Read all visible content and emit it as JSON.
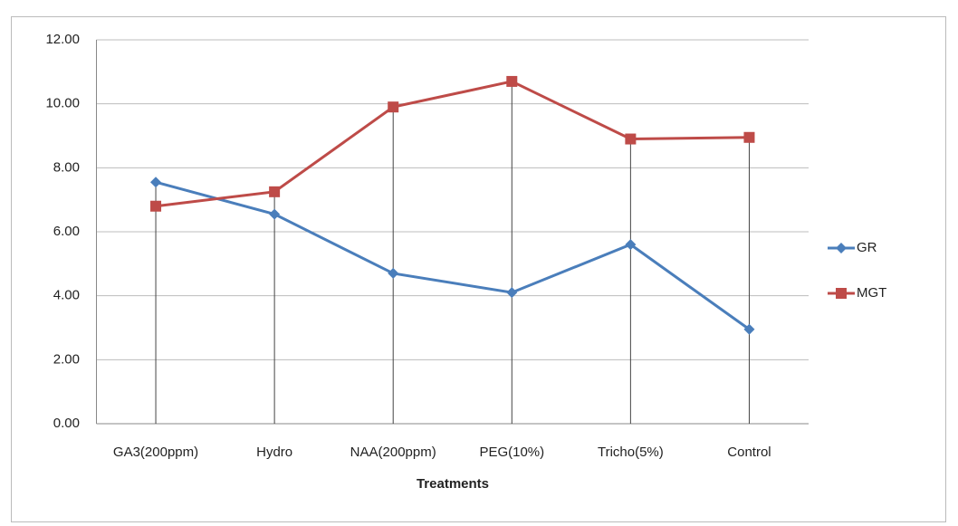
{
  "chart_data": {
    "type": "line",
    "x_label": "Treatments",
    "categories": [
      "GA3(200ppm)",
      "Hydro",
      "NAA(200ppm)",
      "PEG(10%)",
      "Tricho(5%)",
      "Control"
    ],
    "series": [
      {
        "name": "GR",
        "color": "#4a7ebb",
        "marker": "diamond",
        "values": [
          7.55,
          6.55,
          4.7,
          4.1,
          5.6,
          2.95
        ]
      },
      {
        "name": "MGT",
        "color": "#be4b48",
        "marker": "square",
        "values": [
          6.8,
          7.25,
          9.9,
          10.7,
          8.9,
          8.95
        ]
      }
    ],
    "ylim": [
      0,
      12
    ],
    "yticks": [
      {
        "value": 0,
        "label": "0.00"
      },
      {
        "value": 2,
        "label": "2.00"
      },
      {
        "value": 4,
        "label": "4.00"
      },
      {
        "value": 6,
        "label": "6.00"
      },
      {
        "value": 8,
        "label": "8.00"
      },
      {
        "value": 10,
        "label": "10.00"
      },
      {
        "value": 12,
        "label": "12.00"
      }
    ],
    "grid": true,
    "drop_lines": true,
    "legend": "right"
  }
}
